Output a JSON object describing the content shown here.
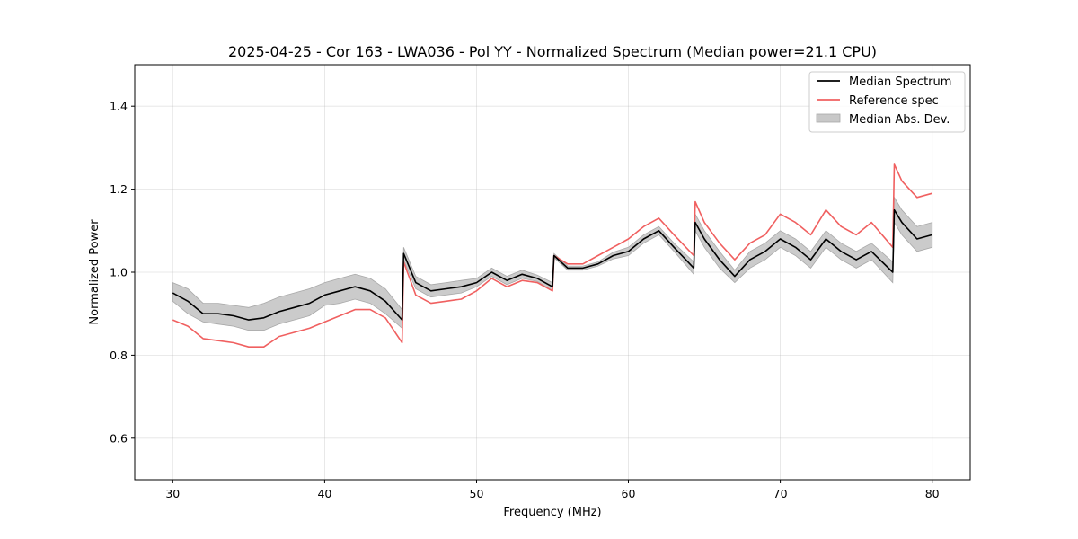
{
  "chart_data": {
    "type": "line",
    "title": "2025-04-25 - Cor 163 - LWA036 - Pol YY - Normalized Spectrum (Median power=21.1 CPU)",
    "xlabel": "Frequency (MHz)",
    "ylabel": "Normalized Power",
    "xlim": [
      27.5,
      82.5
    ],
    "ylim": [
      0.5,
      1.5
    ],
    "xticks": [
      30,
      40,
      50,
      60,
      70,
      80
    ],
    "yticks": [
      0.6,
      0.8,
      1.0,
      1.2,
      1.4
    ],
    "xtick_labels": [
      "30",
      "40",
      "50",
      "60",
      "70",
      "80"
    ],
    "ytick_labels": [
      "0.6",
      "0.8",
      "1.0",
      "1.2",
      "1.4"
    ],
    "grid": true,
    "legend_position": "top-right",
    "colors": {
      "median": "#000000",
      "reference": "#f06060",
      "mad": "#c8c8c8"
    },
    "legend": [
      "Median Spectrum",
      "Reference spec",
      "Median Abs. Dev."
    ],
    "x": [
      30,
      31,
      32,
      33,
      34,
      35,
      36,
      37,
      38,
      39,
      40,
      41,
      42,
      43,
      44,
      45.1,
      45.2,
      46,
      47,
      48,
      49,
      50,
      51,
      52,
      53,
      54,
      55,
      55.1,
      56,
      57,
      58,
      59,
      60,
      61,
      62,
      63,
      64.3,
      64.4,
      65,
      66,
      67,
      68,
      69,
      70,
      71,
      72,
      73,
      74,
      75,
      76,
      77.4,
      77.5,
      78,
      79,
      80
    ],
    "series": [
      {
        "name": "Median Spectrum",
        "values": [
          0.95,
          0.93,
          0.9,
          0.9,
          0.895,
          0.885,
          0.89,
          0.905,
          0.915,
          0.925,
          0.945,
          0.955,
          0.965,
          0.955,
          0.93,
          0.885,
          1.045,
          0.975,
          0.955,
          0.96,
          0.965,
          0.975,
          1.0,
          0.98,
          0.995,
          0.985,
          0.965,
          1.04,
          1.01,
          1.01,
          1.02,
          1.04,
          1.05,
          1.08,
          1.1,
          1.06,
          1.01,
          1.12,
          1.08,
          1.03,
          0.99,
          1.03,
          1.05,
          1.08,
          1.06,
          1.03,
          1.08,
          1.05,
          1.03,
          1.05,
          1.0,
          1.15,
          1.12,
          1.08,
          1.09
        ]
      },
      {
        "name": "Reference spec",
        "values": [
          0.885,
          0.87,
          0.84,
          0.835,
          0.83,
          0.82,
          0.82,
          0.845,
          0.855,
          0.865,
          0.88,
          0.895,
          0.91,
          0.91,
          0.89,
          0.83,
          1.025,
          0.945,
          0.925,
          0.93,
          0.935,
          0.955,
          0.985,
          0.965,
          0.98,
          0.975,
          0.955,
          1.04,
          1.02,
          1.02,
          1.04,
          1.06,
          1.08,
          1.11,
          1.13,
          1.09,
          1.04,
          1.17,
          1.12,
          1.07,
          1.03,
          1.07,
          1.09,
          1.14,
          1.12,
          1.09,
          1.15,
          1.11,
          1.09,
          1.12,
          1.06,
          1.26,
          1.22,
          1.18,
          1.19
        ]
      },
      {
        "name": "Median Abs. Dev.",
        "type": "band",
        "lower": [
          0.93,
          0.9,
          0.88,
          0.875,
          0.87,
          0.86,
          0.86,
          0.875,
          0.885,
          0.895,
          0.92,
          0.925,
          0.935,
          0.925,
          0.9,
          0.865,
          1.03,
          0.96,
          0.94,
          0.945,
          0.95,
          0.965,
          0.99,
          0.97,
          0.985,
          0.978,
          0.955,
          1.035,
          1.005,
          1.005,
          1.015,
          1.032,
          1.04,
          1.07,
          1.09,
          1.05,
          0.995,
          1.1,
          1.06,
          1.01,
          0.975,
          1.01,
          1.03,
          1.06,
          1.04,
          1.01,
          1.06,
          1.03,
          1.01,
          1.03,
          0.975,
          1.12,
          1.09,
          1.05,
          1.06
        ],
        "upper": [
          0.975,
          0.96,
          0.925,
          0.925,
          0.92,
          0.915,
          0.925,
          0.94,
          0.95,
          0.96,
          0.975,
          0.985,
          0.995,
          0.985,
          0.96,
          0.91,
          1.06,
          0.99,
          0.97,
          0.975,
          0.98,
          0.985,
          1.01,
          0.99,
          1.005,
          0.993,
          0.975,
          1.045,
          1.015,
          1.015,
          1.025,
          1.048,
          1.06,
          1.09,
          1.11,
          1.07,
          1.025,
          1.14,
          1.1,
          1.05,
          1.005,
          1.05,
          1.07,
          1.1,
          1.08,
          1.05,
          1.1,
          1.07,
          1.05,
          1.07,
          1.025,
          1.18,
          1.15,
          1.11,
          1.12
        ]
      }
    ]
  }
}
